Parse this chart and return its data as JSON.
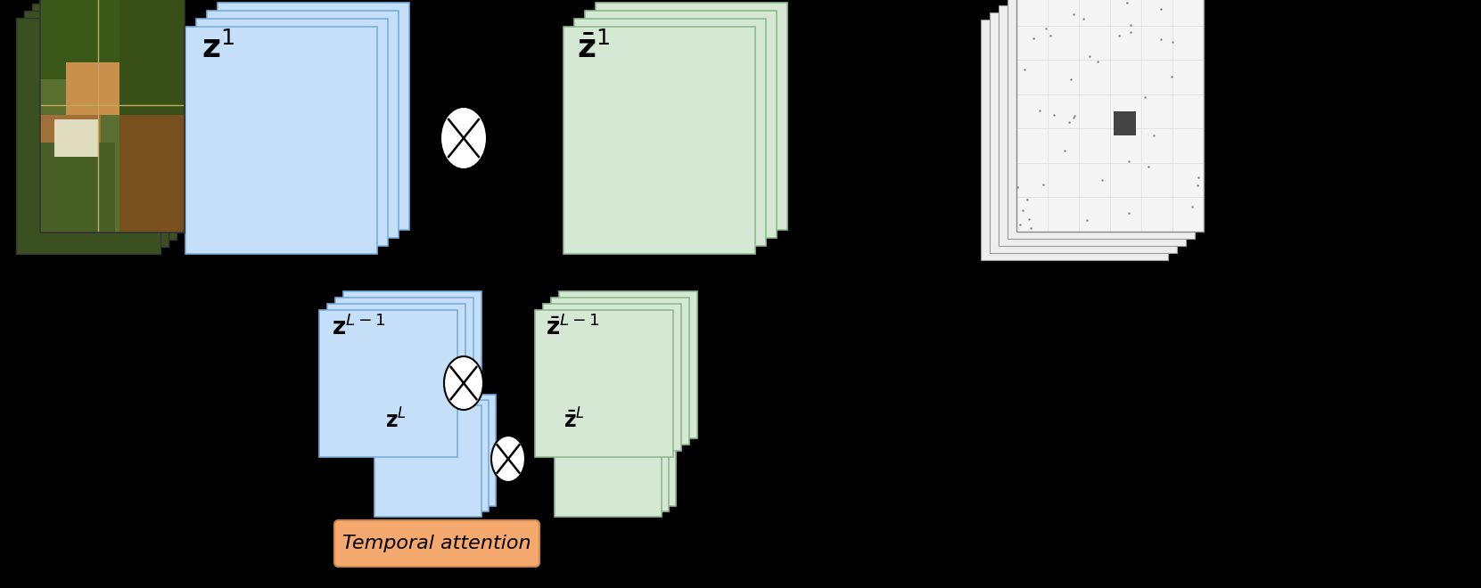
{
  "bg_color": "#000000",
  "blue_color": "#c5dff8",
  "green_color": "#d4e8d4",
  "orange_color": "#f5a96e",
  "border_blue": "#7aaddb",
  "border_green": "#8fba8f",
  "temporal_attention_label": "Temporal attention"
}
